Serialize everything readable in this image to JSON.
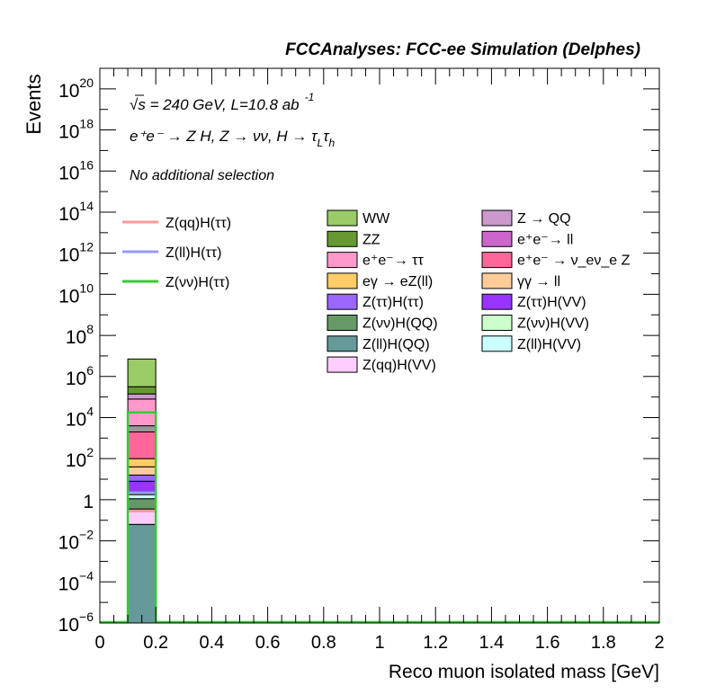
{
  "chart_data": {
    "type": "bar",
    "title": "FCCAnalyses: FCC-ee Simulation (Delphes)",
    "ylabel": "Events",
    "xlabel": "Reco muon isolated mass [GeV]",
    "xlim": [
      0,
      2
    ],
    "ylim_log10": [
      -6,
      21
    ],
    "y_log_scale": true,
    "grid": false,
    "annotations": {
      "energy_prefix": "s",
      "energy_text": " = 240 GeV, L=10.8 ab",
      "lumi_exp": "-1",
      "process": "e⁺e⁻ → Z H, Z → νν, H → τ",
      "tau_sub1": "L",
      "tau_mid": "τ",
      "tau_sub2": "h",
      "selection": "No additional selection"
    },
    "x_ticks": [
      {
        "v": 0,
        "label": "0"
      },
      {
        "v": 0.2,
        "label": "0.2"
      },
      {
        "v": 0.4,
        "label": "0.4"
      },
      {
        "v": 0.6,
        "label": "0.6"
      },
      {
        "v": 0.8,
        "label": "0.8"
      },
      {
        "v": 1.0,
        "label": "1"
      },
      {
        "v": 1.2,
        "label": "1.2"
      },
      {
        "v": 1.4,
        "label": "1.4"
      },
      {
        "v": 1.6,
        "label": "1.6"
      },
      {
        "v": 1.8,
        "label": "1.8"
      },
      {
        "v": 2.0,
        "label": "2"
      }
    ],
    "y_ticks": [
      {
        "exp": -6,
        "base": "10",
        "sup": "−6"
      },
      {
        "exp": -4,
        "base": "10",
        "sup": "−4"
      },
      {
        "exp": -2,
        "base": "10",
        "sup": "−2"
      },
      {
        "exp": 0,
        "base": "1",
        "sup": ""
      },
      {
        "exp": 2,
        "base": "10",
        "sup": "2"
      },
      {
        "exp": 4,
        "base": "10",
        "sup": "4"
      },
      {
        "exp": 6,
        "base": "10",
        "sup": "6"
      },
      {
        "exp": 8,
        "base": "10",
        "sup": "8"
      },
      {
        "exp": 10,
        "base": "10",
        "sup": "10"
      },
      {
        "exp": 12,
        "base": "10",
        "sup": "12"
      },
      {
        "exp": 14,
        "base": "10",
        "sup": "14"
      },
      {
        "exp": 16,
        "base": "10",
        "sup": "16"
      },
      {
        "exp": 18,
        "base": "10",
        "sup": "18"
      },
      {
        "exp": 20,
        "base": "10",
        "sup": "20"
      }
    ],
    "bin": {
      "x_low": 0.1,
      "x_high": 0.2
    },
    "stack_order": [
      "Z(ll)H(QQ)",
      "Z(qq)H(VV)",
      "Z(νν)H(QQ)",
      "Z(ll)H(VV)",
      "Z(νν)H(VV)",
      "Z(ττ)H(VV)",
      "Z(ττ)H(ττ)",
      "γγ → ll",
      "eγ → eZ(ll)",
      "e⁺e⁻ → ν_eν_e Z",
      "e⁺e⁻ → ll",
      "e⁺e⁻→ ττ",
      "Z → QQ",
      "ZZ",
      "WW"
    ],
    "stack_tops_log10": {
      "Z(ll)H(QQ)": -1.2,
      "Z(qq)H(VV)": -0.45,
      "Z(νν)H(QQ)": 0.05,
      "Z(ll)H(VV)": 0.25,
      "Z(νν)H(VV)": 0.4,
      "Z(ττ)H(VV)": 0.9,
      "Z(ττ)H(ττ)": 1.2,
      "γγ → ll": 1.6,
      "eγ → eZ(ll)": 2.0,
      "e⁺e⁻ → ν_eν_e Z": 3.3,
      "e⁺e⁻ → ll": 3.6,
      "e⁺e⁻→ ττ": 4.9,
      "Z → QQ": 5.15,
      "ZZ": 5.5,
      "WW": 6.85
    },
    "signal_lines_log10": {
      "Z(qq)H(ττ)": -0.55,
      "Z(ll)H(ττ)": 0.35,
      "Z(νν)H(ττ)": 4.25
    },
    "signal_legend": [
      {
        "name": "Z(qq)H(ττ)",
        "color": "#ff9999"
      },
      {
        "name": "Z(ll)H(ττ)",
        "color": "#9999ff"
      },
      {
        "name": "Z(νν)H(ττ)",
        "color": "#33cc33"
      }
    ],
    "background_legend_col1": [
      {
        "name": "WW",
        "color": "#99cc66"
      },
      {
        "name": "ZZ",
        "color": "#669933"
      },
      {
        "name": "e⁺e⁻→ ττ",
        "color": "#ff99cc"
      },
      {
        "name": "eγ → eZ(ll)",
        "color": "#ffcc66"
      },
      {
        "name": "Z(ττ)H(ττ)",
        "color": "#9966ff"
      },
      {
        "name": "Z(νν)H(QQ)",
        "color": "#669966"
      },
      {
        "name": "Z(ll)H(QQ)",
        "color": "#669999"
      },
      {
        "name": "Z(qq)H(VV)",
        "color": "#ffccff"
      }
    ],
    "background_legend_col2": [
      {
        "name": "Z → QQ",
        "color": "#cc99cc"
      },
      {
        "name": "e⁺e⁻→ ll",
        "color": "#cc66cc"
      },
      {
        "name": "e⁺e⁻ → ν_eν_e Z",
        "color": "#ff6699"
      },
      {
        "name": "γγ → ll",
        "color": "#ffcc99"
      },
      {
        "name": "Z(ττ)H(VV)",
        "color": "#9933ff"
      },
      {
        "name": "Z(νν)H(VV)",
        "color": "#ccffcc"
      },
      {
        "name": "Z(ll)H(VV)",
        "color": "#ccffff"
      }
    ]
  }
}
